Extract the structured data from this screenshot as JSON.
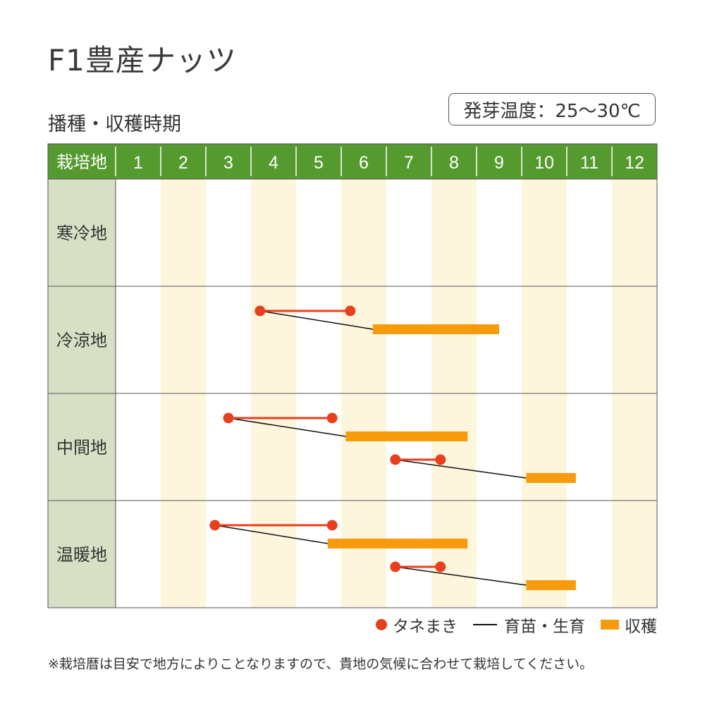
{
  "title": "F1豊産ナッツ",
  "subtitle": "播種・収穫時期",
  "germination_label": "発芽温度：25〜30℃",
  "colors": {
    "header_green": "#559a2e",
    "region_bg": "#d7dfc4",
    "stripe": "#fdf5dc",
    "sowing": "#e8401c",
    "harvest": "#f79b0c",
    "growing": "#111111"
  },
  "legend": {
    "sowing": "タネまき",
    "growing": "育苗・生育",
    "harvest": "収穫"
  },
  "note": "※栽培暦は目安で地方によりことなりますので、貴地の気候に合わせて栽培してください。",
  "chart_data": {
    "type": "gantt",
    "header_label": "栽培地",
    "months": [
      "1",
      "2",
      "3",
      "4",
      "5",
      "6",
      "7",
      "8",
      "9",
      "10",
      "11",
      "12"
    ],
    "regions": [
      {
        "name": "寒冷地",
        "cycles": []
      },
      {
        "name": "冷涼地",
        "cycles": [
          {
            "sow": [
              4.2,
              6.2
            ],
            "harvest": [
              6.7,
              9.5
            ]
          }
        ]
      },
      {
        "name": "中間地",
        "cycles": [
          {
            "sow": [
              3.5,
              5.8
            ],
            "harvest": [
              6.1,
              8.8
            ]
          },
          {
            "sow": [
              7.2,
              8.2
            ],
            "harvest": [
              10.1,
              11.2
            ]
          }
        ]
      },
      {
        "name": "温暖地",
        "cycles": [
          {
            "sow": [
              3.2,
              5.8
            ],
            "harvest": [
              5.7,
              8.8
            ]
          },
          {
            "sow": [
              7.2,
              8.2
            ],
            "harvest": [
              10.1,
              11.2
            ]
          }
        ]
      }
    ]
  }
}
